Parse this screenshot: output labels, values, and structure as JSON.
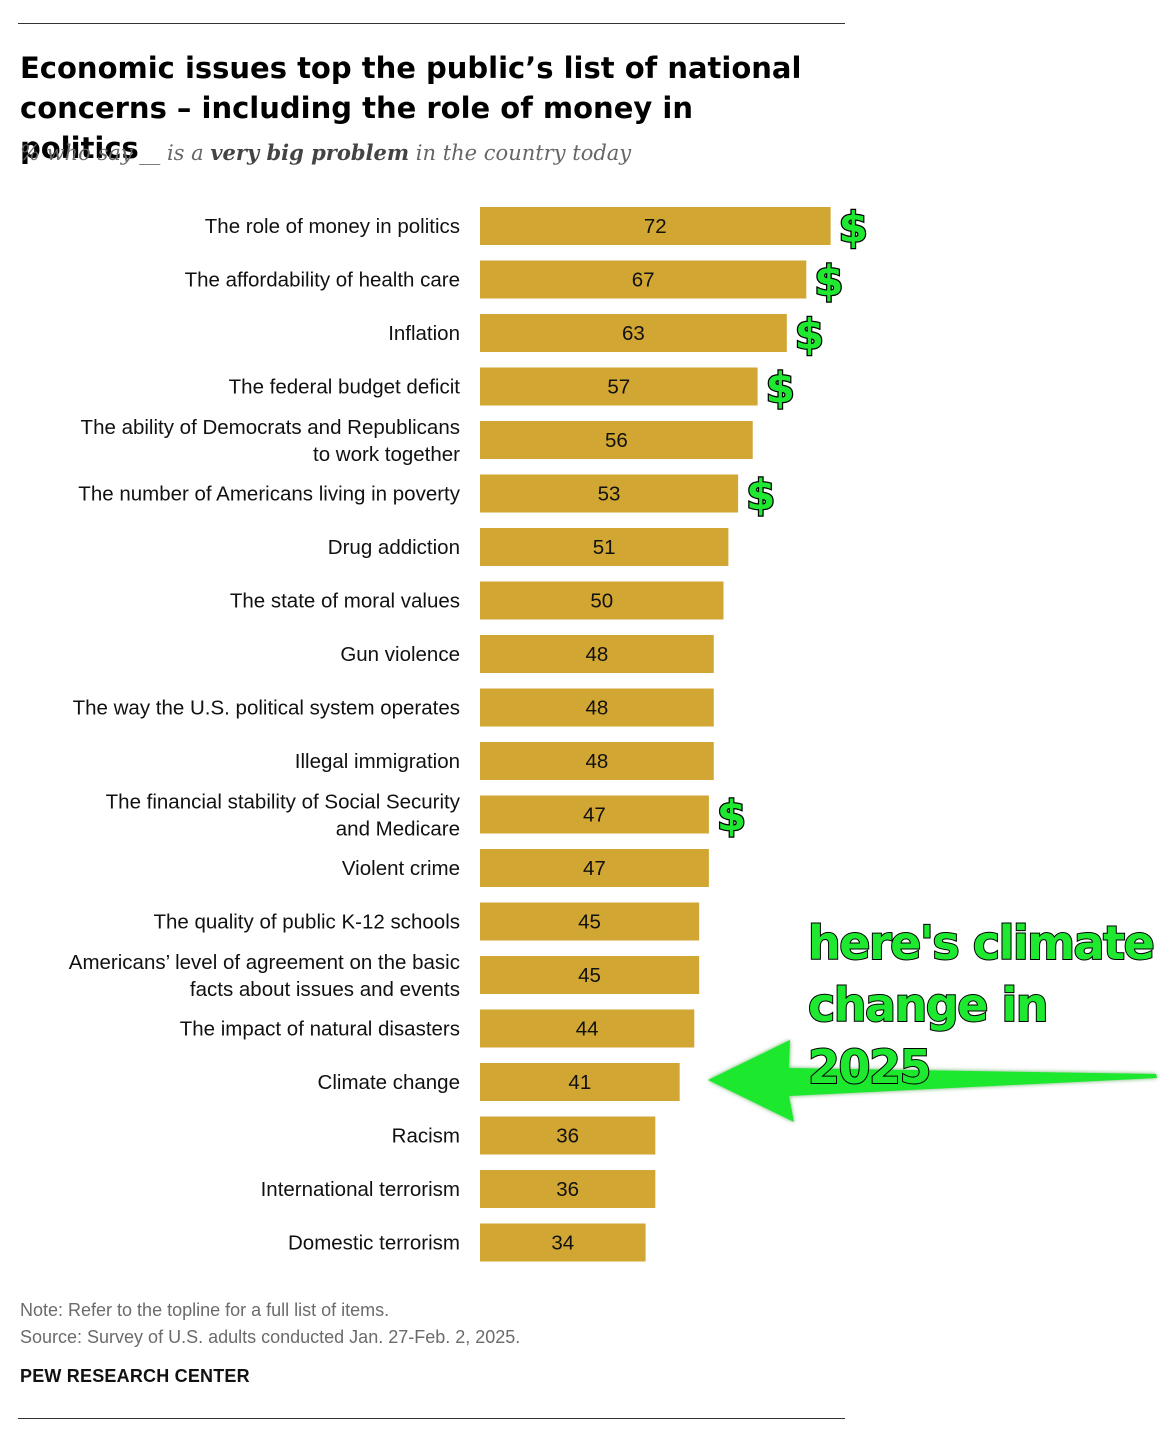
{
  "title": "Economic issues top the public’s list of national concerns – including the role of money in politics",
  "subtitle": {
    "before": "% who say __ is a ",
    "emphasis": "very big problem",
    "after": " in the country today"
  },
  "chart_data": {
    "type": "bar",
    "orientation": "horizontal",
    "title": "Economic issues top the public’s list of national concerns – including the role of money in politics",
    "subtitle": "% who say __ is a very big problem in the country today",
    "xlabel": "",
    "ylabel": "",
    "xlim": [
      0,
      100
    ],
    "bar_color": "#d1a633",
    "categories": [
      [
        "The role of money in politics"
      ],
      [
        "The affordability of health care"
      ],
      [
        "Inflation"
      ],
      [
        "The federal budget deficit"
      ],
      [
        "The ability of Democrats and Republicans",
        "to work together"
      ],
      [
        "The number of Americans living in poverty"
      ],
      [
        "Drug addiction"
      ],
      [
        "The state of moral values"
      ],
      [
        "Gun violence"
      ],
      [
        "The way the U.S. political system operates"
      ],
      [
        "Illegal immigration"
      ],
      [
        "The financial stability of Social Security",
        "and Medicare"
      ],
      [
        "Violent crime"
      ],
      [
        "The quality of public K-12 schools"
      ],
      [
        "Americans’ level of agreement on the basic",
        "facts about issues and events"
      ],
      [
        "The impact of natural disasters"
      ],
      [
        "Climate change"
      ],
      [
        "Racism"
      ],
      [
        "International terrorism"
      ],
      [
        "Domestic terrorism"
      ]
    ],
    "values": [
      72,
      67,
      63,
      57,
      56,
      53,
      51,
      50,
      48,
      48,
      48,
      47,
      47,
      45,
      45,
      44,
      41,
      36,
      36,
      34
    ],
    "dollar_marked": [
      true,
      true,
      true,
      true,
      false,
      true,
      false,
      false,
      false,
      false,
      false,
      true,
      false,
      false,
      false,
      false,
      false,
      false,
      false,
      false
    ],
    "dollar_symbol": "$",
    "dollar_color": "#1ee82f",
    "annotation": {
      "lines": [
        "here's climate",
        "change in 2025"
      ],
      "target_category": "Climate change",
      "color": "#1ee82f",
      "arrow_color": "#1ee82f"
    }
  },
  "note": "Note: Refer to the topline for a full list of items.",
  "source": "Source: Survey of U.S. adults conducted Jan. 27-Feb. 2, 2025.",
  "brand": "PEW RESEARCH CENTER"
}
